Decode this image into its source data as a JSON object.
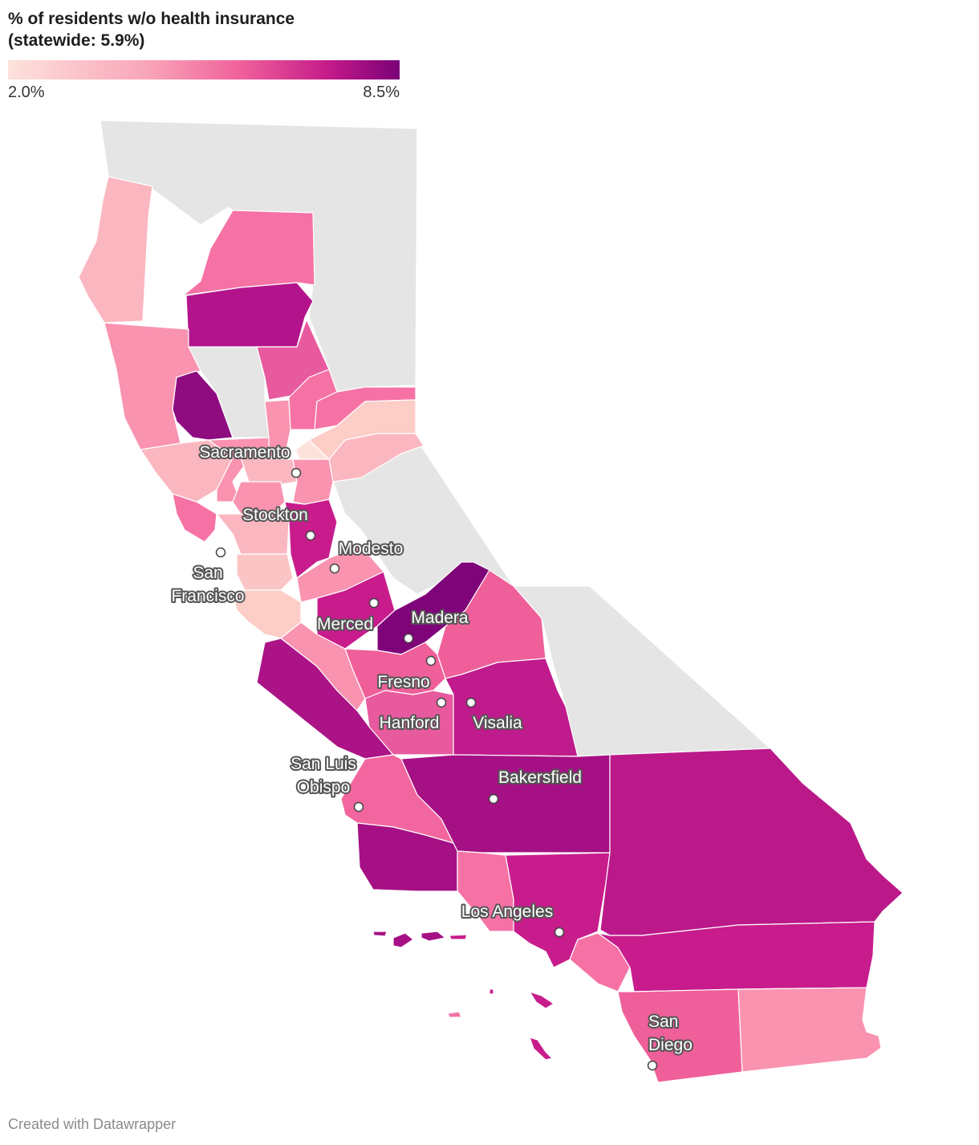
{
  "legend": {
    "title_line1": "% of residents w/o health insurance",
    "title_line2": "(statewide: 5.9%)",
    "min_label": "2.0%",
    "max_label": "8.5%",
    "min_value": 2.0,
    "max_value": 8.5,
    "colors": [
      "#fde2dc",
      "#f9a6b9",
      "#ef5f9a",
      "#c41a8a",
      "#7a0177"
    ],
    "no_data_color": "#e5e5e5"
  },
  "cities": [
    {
      "name": "Sacramento",
      "lines": [
        "Sacramento"
      ]
    },
    {
      "name": "Stockton",
      "lines": [
        "Stockton"
      ]
    },
    {
      "name": "Modesto",
      "lines": [
        "Modesto"
      ]
    },
    {
      "name": "San Francisco",
      "lines": [
        "San",
        "Francisco"
      ]
    },
    {
      "name": "Merced",
      "lines": [
        "Merced"
      ]
    },
    {
      "name": "Madera",
      "lines": [
        "Madera"
      ]
    },
    {
      "name": "Fresno",
      "lines": [
        "Fresno"
      ]
    },
    {
      "name": "Hanford",
      "lines": [
        "Hanford"
      ]
    },
    {
      "name": "Visalia",
      "lines": [
        "Visalia"
      ]
    },
    {
      "name": "San Luis Obispo",
      "lines": [
        "San Luis",
        "Obispo"
      ]
    },
    {
      "name": "Bakersfield",
      "lines": [
        "Bakersfield"
      ]
    },
    {
      "name": "Los Angeles",
      "lines": [
        "Los Angeles"
      ]
    },
    {
      "name": "San Diego",
      "lines": [
        "San",
        "Diego"
      ]
    }
  ],
  "footer": {
    "credit": "Created with Datawrapper"
  }
}
